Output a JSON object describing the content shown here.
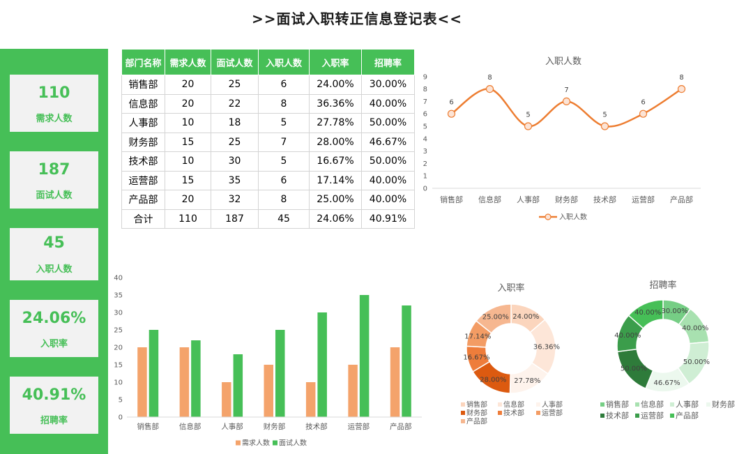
{
  "title": ">>面试入职转正信息登记表<<",
  "kpi_cards": [
    {
      "value": "110",
      "label": "需求人数"
    },
    {
      "value": "187",
      "label": "面试人数"
    },
    {
      "value": "45",
      "label": "入职人数"
    },
    {
      "value": "24.06%",
      "label": "入职率"
    },
    {
      "value": "40.91%",
      "label": "招聘率"
    }
  ],
  "table": {
    "headers": [
      "部门名称",
      "需求人数",
      "面试人数",
      "入职人数",
      "入职率",
      "招聘率"
    ],
    "rows": [
      [
        "销售部",
        "20",
        "25",
        "6",
        "24.00%",
        "30.00%"
      ],
      [
        "信息部",
        "20",
        "22",
        "8",
        "36.36%",
        "40.00%"
      ],
      [
        "人事部",
        "10",
        "18",
        "5",
        "27.78%",
        "50.00%"
      ],
      [
        "财务部",
        "15",
        "25",
        "7",
        "28.00%",
        "46.67%"
      ],
      [
        "技术部",
        "10",
        "30",
        "5",
        "16.67%",
        "50.00%"
      ],
      [
        "运营部",
        "15",
        "35",
        "6",
        "17.14%",
        "40.00%"
      ],
      [
        "产品部",
        "20",
        "32",
        "8",
        "25.00%",
        "40.00%"
      ],
      [
        "合计",
        "110",
        "187",
        "45",
        "24.06%",
        "40.91%"
      ]
    ]
  },
  "colors": {
    "brand_green": "#46bf57",
    "card_background": "#f2f2f2",
    "header_text": "#ffffff",
    "line_orange": "#ed7d31"
  },
  "chart_data": [
    {
      "type": "line",
      "title": "入职人数",
      "smooth": true,
      "categories": [
        "销售部",
        "信息部",
        "人事部",
        "财务部",
        "技术部",
        "运营部",
        "产品部"
      ],
      "series": [
        {
          "name": "入职人数",
          "values": [
            6,
            8,
            5,
            7,
            5,
            6,
            8
          ],
          "color": "#ed7d31"
        }
      ],
      "ylim": [
        0,
        9
      ],
      "yticks": [
        0,
        1,
        2,
        3,
        4,
        5,
        6,
        7,
        8,
        9
      ],
      "data_labels": true,
      "grid": false,
      "legend": "bottom"
    },
    {
      "type": "bar",
      "categories": [
        "销售部",
        "信息部",
        "人事部",
        "财务部",
        "技术部",
        "运营部",
        "产品部"
      ],
      "series": [
        {
          "name": "需求人数",
          "values": [
            20,
            20,
            10,
            15,
            10,
            15,
            20
          ],
          "color": "#f4a36b"
        },
        {
          "name": "面试人数",
          "values": [
            25,
            22,
            18,
            25,
            30,
            35,
            32
          ],
          "color": "#46bf57"
        }
      ],
      "ylim": [
        0,
        40
      ],
      "yticks": [
        0,
        5,
        10,
        15,
        20,
        25,
        30,
        35,
        40
      ],
      "grid": false,
      "legend": "bottom"
    },
    {
      "type": "pie",
      "donut": true,
      "title": "入职率",
      "categories": [
        "销售部",
        "信息部",
        "人事部",
        "财务部",
        "技术部",
        "运营部",
        "产品部"
      ],
      "values": [
        24.0,
        36.36,
        27.78,
        28.0,
        16.67,
        17.14,
        25.0
      ],
      "labels": [
        "24.00%",
        "36.36%",
        "27.78%",
        "28.00%",
        "16.67%",
        "17.14%",
        "25.00%"
      ],
      "colors": [
        "#fbd5bd",
        "#fde6d8",
        "#fef3ec",
        "#dc5a10",
        "#ee7d3b",
        "#f39c64",
        "#f6b790"
      ],
      "legend": "bottom"
    },
    {
      "type": "pie",
      "donut": true,
      "title": "招聘率",
      "categories": [
        "销售部",
        "信息部",
        "人事部",
        "财务部",
        "技术部",
        "运营部",
        "产品部"
      ],
      "values": [
        30.0,
        40.0,
        50.0,
        46.67,
        50.0,
        40.0,
        40.0
      ],
      "labels": [
        "30.00%",
        "40.00%",
        "50.00%",
        "46.67%",
        "50.00%",
        "40.00%",
        "40.00%"
      ],
      "colors": [
        "#76ce85",
        "#a8e1b0",
        "#cfeed4",
        "#ecf8ee",
        "#2e7b3a",
        "#3b9d4b",
        "#46bf57"
      ],
      "legend": "bottom"
    }
  ]
}
